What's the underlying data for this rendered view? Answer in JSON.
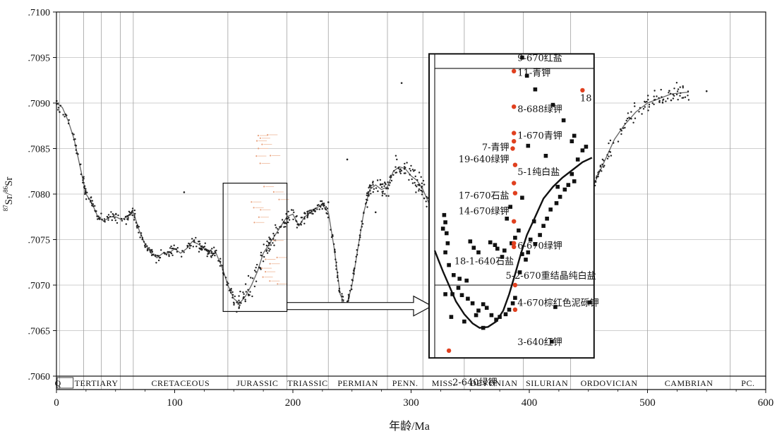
{
  "chart_data": {
    "type": "scatter",
    "ylabel_main": "Sr/",
    "ylabel_sup1": "87",
    "ylabel_sup2": "86",
    "ylabel_end": "Sr",
    "xlabel": "年龄/Ma",
    "xlim": [
      0,
      600
    ],
    "ylim": [
      0.706,
      0.71
    ],
    "x_ticks": [
      "0",
      "100",
      "200",
      "300",
      "400",
      "500",
      "600"
    ],
    "y_ticks": [
      ".7060",
      ".7065",
      ".7070",
      ".7075",
      ".7080",
      ".7085",
      ".7090",
      ".7095",
      ".7100"
    ],
    "periods": [
      {
        "label": "Q",
        "start": 0,
        "end": 2.6
      },
      {
        "label": "TERTIARY",
        "start": 2.6,
        "end": 65
      },
      {
        "label": "CRETACEOUS",
        "start": 65,
        "end": 145
      },
      {
        "label": "JURASSIC",
        "start": 145,
        "end": 195
      },
      {
        "label": "TRIASSIC",
        "start": 195,
        "end": 230
      },
      {
        "label": "PERMIAN",
        "start": 230,
        "end": 280
      },
      {
        "label": "PENN.",
        "start": 280,
        "end": 310
      },
      {
        "label": "MISS.",
        "start": 310,
        "end": 345
      },
      {
        "label": "DEVONIAN",
        "start": 345,
        "end": 395
      },
      {
        "label": "SILURIAN",
        "start": 395,
        "end": 435
      },
      {
        "label": "ORDOVICIAN",
        "start": 435,
        "end": 500
      },
      {
        "label": "CAMBRIAN",
        "start": 500,
        "end": 570
      },
      {
        "label": "PC.",
        "start": 570,
        "end": 600
      }
    ],
    "extra_gridlines_x": [
      23,
      38,
      54
    ],
    "seawater_curve": [
      [
        0,
        0.709
      ],
      [
        5,
        0.70895
      ],
      [
        10,
        0.7088
      ],
      [
        15,
        0.7086
      ],
      [
        20,
        0.7083
      ],
      [
        25,
        0.708
      ],
      [
        30,
        0.7079
      ],
      [
        35,
        0.70775
      ],
      [
        40,
        0.7077
      ],
      [
        45,
        0.70775
      ],
      [
        50,
        0.70775
      ],
      [
        55,
        0.70772
      ],
      [
        60,
        0.70775
      ],
      [
        65,
        0.7078
      ],
      [
        70,
        0.7076
      ],
      [
        75,
        0.70745
      ],
      [
        80,
        0.70735
      ],
      [
        85,
        0.7073
      ],
      [
        90,
        0.70735
      ],
      [
        95,
        0.70735
      ],
      [
        100,
        0.7074
      ],
      [
        105,
        0.70735
      ],
      [
        110,
        0.7074
      ],
      [
        115,
        0.70748
      ],
      [
        120,
        0.70745
      ],
      [
        125,
        0.7074
      ],
      [
        130,
        0.70735
      ],
      [
        135,
        0.70735
      ],
      [
        140,
        0.7072
      ],
      [
        145,
        0.707
      ],
      [
        150,
        0.70685
      ],
      [
        155,
        0.7068
      ],
      [
        160,
        0.70688
      ],
      [
        165,
        0.707
      ],
      [
        170,
        0.70715
      ],
      [
        175,
        0.70735
      ],
      [
        180,
        0.70745
      ],
      [
        185,
        0.70755
      ],
      [
        190,
        0.70765
      ],
      [
        195,
        0.70775
      ],
      [
        200,
        0.70778
      ],
      [
        205,
        0.70765
      ],
      [
        210,
        0.70775
      ],
      [
        215,
        0.7078
      ],
      [
        220,
        0.70785
      ],
      [
        225,
        0.70788
      ],
      [
        230,
        0.7078
      ],
      [
        235,
        0.7074
      ],
      [
        240,
        0.7069
      ],
      [
        245,
        0.70675
      ],
      [
        250,
        0.707
      ],
      [
        255,
        0.7074
      ],
      [
        260,
        0.7078
      ],
      [
        265,
        0.70805
      ],
      [
        270,
        0.7081
      ],
      [
        275,
        0.70805
      ],
      [
        280,
        0.70808
      ],
      [
        285,
        0.70825
      ],
      [
        290,
        0.7083
      ],
      [
        295,
        0.70828
      ],
      [
        300,
        0.7082
      ],
      [
        305,
        0.70815
      ],
      [
        310,
        0.70805
      ],
      [
        315,
        0.7079
      ],
      [
        320,
        0.7077
      ]
    ],
    "seawater_curve_right": [
      [
        448,
        0.7078
      ],
      [
        453,
        0.70805
      ],
      [
        458,
        0.7082
      ],
      [
        465,
        0.7084
      ],
      [
        472,
        0.7086
      ],
      [
        480,
        0.70875
      ],
      [
        490,
        0.7089
      ],
      [
        500,
        0.709
      ],
      [
        510,
        0.70905
      ],
      [
        520,
        0.7091
      ],
      [
        535,
        0.70912
      ]
    ],
    "scatter_seed": 17,
    "jurassic_box": {
      "x1": 141,
      "x2": 195,
      "y1": 0.70671,
      "y2": 0.70812
    },
    "inset": {
      "frame_x": [
        320,
        453
      ],
      "frame_y": [
        0.7062,
        0.70954
      ],
      "curve": [
        [
          320,
          0.70738
        ],
        [
          323,
          0.70728
        ],
        [
          327,
          0.70715
        ],
        [
          332,
          0.707
        ],
        [
          338,
          0.70682
        ],
        [
          345,
          0.70668
        ],
        [
          352,
          0.70658
        ],
        [
          358,
          0.70653
        ],
        [
          365,
          0.70654
        ],
        [
          372,
          0.7066
        ],
        [
          378,
          0.70672
        ],
        [
          383,
          0.7069
        ],
        [
          388,
          0.70712
        ],
        [
          393,
          0.70735
        ],
        [
          398,
          0.70755
        ],
        [
          405,
          0.70775
        ],
        [
          412,
          0.70795
        ],
        [
          420,
          0.70808
        ],
        [
          428,
          0.70818
        ],
        [
          436,
          0.70826
        ],
        [
          445,
          0.70835
        ],
        [
          453,
          0.7084
        ]
      ],
      "black_points": [
        [
          328,
          0.70777
        ],
        [
          329,
          0.70769
        ],
        [
          327,
          0.70762
        ],
        [
          330,
          0.70757
        ],
        [
          331,
          0.70746
        ],
        [
          329,
          0.70736
        ],
        [
          332,
          0.70722
        ],
        [
          336,
          0.70711
        ],
        [
          341,
          0.70707
        ],
        [
          347,
          0.70705
        ],
        [
          340,
          0.70697
        ],
        [
          343,
          0.70689
        ],
        [
          335,
          0.7069
        ],
        [
          329,
          0.7069
        ],
        [
          348,
          0.70685
        ],
        [
          352,
          0.7068
        ],
        [
          355,
          0.70667
        ],
        [
          357,
          0.70672
        ],
        [
          361,
          0.70679
        ],
        [
          364,
          0.70675
        ],
        [
          368,
          0.70667
        ],
        [
          372,
          0.70662
        ],
        [
          375,
          0.70665
        ],
        [
          380,
          0.70668
        ],
        [
          383,
          0.70673
        ],
        [
          386,
          0.7068
        ],
        [
          388,
          0.70686
        ],
        [
          392,
          0.70714
        ],
        [
          394,
          0.70734
        ],
        [
          397,
          0.70728
        ],
        [
          399,
          0.70736
        ],
        [
          401,
          0.7075
        ],
        [
          405,
          0.70745
        ],
        [
          409,
          0.70755
        ],
        [
          412,
          0.70765
        ],
        [
          415,
          0.70773
        ],
        [
          418,
          0.70783
        ],
        [
          423,
          0.7079
        ],
        [
          426,
          0.70797
        ],
        [
          430,
          0.70805
        ],
        [
          433,
          0.7081
        ],
        [
          436,
          0.70822
        ],
        [
          438,
          0.70814
        ],
        [
          441,
          0.70838
        ],
        [
          445,
          0.70848
        ],
        [
          448,
          0.70852
        ],
        [
          419,
          0.70638
        ],
        [
          451,
          0.70681
        ],
        [
          422,
          0.70676
        ],
        [
          388,
          0.70752
        ],
        [
          391,
          0.7076
        ],
        [
          385,
          0.70746
        ],
        [
          381,
          0.70773
        ],
        [
          384,
          0.70786
        ],
        [
          379,
          0.70738
        ],
        [
          377,
          0.70731
        ],
        [
          373,
          0.7074
        ],
        [
          371,
          0.70744
        ],
        [
          367,
          0.70747
        ],
        [
          357,
          0.70736
        ],
        [
          353,
          0.70741
        ],
        [
          350,
          0.70748
        ],
        [
          334,
          0.70665
        ],
        [
          345,
          0.7066
        ],
        [
          361,
          0.70653
        ],
        [
          394,
          0.7095
        ],
        [
          398,
          0.7093
        ],
        [
          405,
          0.70915
        ],
        [
          420,
          0.70898
        ],
        [
          429,
          0.70881
        ],
        [
          399,
          0.70853
        ],
        [
          394,
          0.70796
        ],
        [
          404,
          0.7077
        ],
        [
          414,
          0.70842
        ],
        [
          424,
          0.70808
        ],
        [
          436,
          0.70858
        ],
        [
          438,
          0.70864
        ]
      ],
      "red_points": [
        [
          387,
          0.70935
        ],
        [
          387,
          0.70896
        ],
        [
          387,
          0.70867
        ],
        [
          387,
          0.70858
        ],
        [
          386,
          0.7085
        ],
        [
          388,
          0.70832
        ],
        [
          387,
          0.70812
        ],
        [
          388,
          0.70801
        ],
        [
          387,
          0.7077
        ],
        [
          387,
          0.70746
        ],
        [
          387,
          0.70742
        ],
        [
          388,
          0.707
        ],
        [
          388,
          0.70673
        ],
        [
          332,
          0.70628
        ],
        [
          445,
          0.70914
        ]
      ],
      "labels": [
        {
          "text": "9-670红盐",
          "x": 390,
          "y": 0.70946,
          "anchor": "start"
        },
        {
          "text": "11-青钾",
          "x": 390,
          "y": 0.7093,
          "anchor": "start"
        },
        {
          "text": "18",
          "x": 443,
          "y": 0.70902,
          "anchor": "start"
        },
        {
          "text": "8-688绿钾",
          "x": 390,
          "y": 0.7089,
          "anchor": "start"
        },
        {
          "text": "1-670青钾",
          "x": 390,
          "y": 0.70861,
          "anchor": "start"
        },
        {
          "text": "7-青钾",
          "x": 383,
          "y": 0.70848,
          "anchor": "end"
        },
        {
          "text": "19-640绿钾",
          "x": 383,
          "y": 0.70835,
          "anchor": "end"
        },
        {
          "text": "5-1纯白盐",
          "x": 390,
          "y": 0.70821,
          "anchor": "start"
        },
        {
          "text": "17-670石盐",
          "x": 383,
          "y": 0.70795,
          "anchor": "end"
        },
        {
          "text": "14-670绿钾",
          "x": 383,
          "y": 0.70778,
          "anchor": "end"
        },
        {
          "text": "6-670绿钾",
          "x": 390,
          "y": 0.7074,
          "anchor": "start"
        },
        {
          "text": "18-1-640石盐",
          "x": 387,
          "y": 0.70723,
          "anchor": "end"
        },
        {
          "text": "5-2-670重结晶纯白盐",
          "x": 380,
          "y": 0.70707,
          "anchor": "start"
        },
        {
          "text": "4-670棕红色泥砾钾",
          "x": 390,
          "y": 0.70677,
          "anchor": "start"
        },
        {
          "text": "3-640红钾",
          "x": 390,
          "y": 0.70634,
          "anchor": "start"
        },
        {
          "text": "2-640绿钾",
          "x": 335,
          "y": 0.7059,
          "anchor": "start"
        }
      ]
    }
  }
}
